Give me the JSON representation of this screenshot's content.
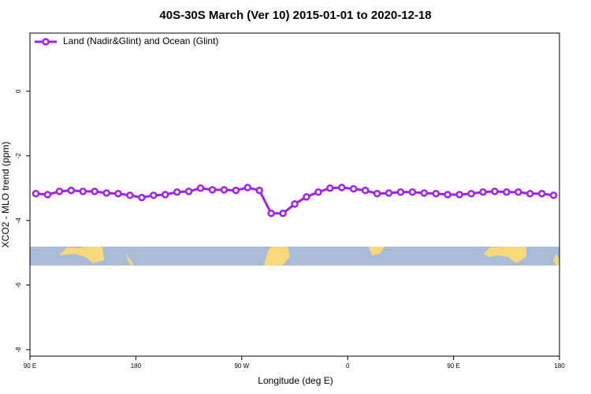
{
  "chart_data": {
    "type": "line",
    "title": "40S-30S March (Ver 10)   2015-01-01 to 2020-12-18",
    "x_label": "Longitude (deg E)",
    "y_label": "XCO2 - MLO trend (ppm)",
    "legend": "top-left",
    "x": [
      95,
      105,
      115,
      125,
      135,
      145,
      155,
      165,
      175,
      185,
      195,
      205,
      215,
      225,
      235,
      245,
      255,
      265,
      275,
      285,
      295,
      305,
      315,
      325,
      335,
      345,
      355,
      365,
      375,
      385,
      395,
      405,
      415,
      425,
      435,
      445,
      455,
      465,
      475,
      485,
      495,
      505,
      515,
      525,
      535
    ],
    "series": [
      {
        "name": "Land (Nadir&Glint) and Ocean (Glint)",
        "color": "#a020f0",
        "values": [
          -3.17,
          -3.2,
          -3.1,
          -3.07,
          -3.1,
          -3.1,
          -3.15,
          -3.17,
          -3.22,
          -3.29,
          -3.22,
          -3.2,
          -3.12,
          -3.1,
          -3.0,
          -3.05,
          -3.05,
          -3.07,
          -2.98,
          -3.07,
          -3.78,
          -3.78,
          -3.49,
          -3.27,
          -3.12,
          -3.0,
          -2.98,
          -3.02,
          -3.07,
          -3.17,
          -3.15,
          -3.12,
          -3.12,
          -3.15,
          -3.17,
          -3.2,
          -3.2,
          -3.17,
          -3.12,
          -3.1,
          -3.12,
          -3.12,
          -3.17,
          -3.17,
          -3.22
        ]
      }
    ],
    "xlim": [
      90,
      540
    ],
    "xticks": [
      {
        "value": 90,
        "label": "90 E"
      },
      180,
      {
        "value": 270,
        "label": "90 W"
      },
      {
        "value": 360,
        "label": "0"
      },
      {
        "value": 450,
        "label": "90 E"
      },
      {
        "value": 540,
        "label": "180"
      }
    ],
    "ylim": [
      -8.2,
      1.8
    ],
    "yticks": [
      0,
      -2,
      -4,
      -6,
      -8
    ]
  }
}
